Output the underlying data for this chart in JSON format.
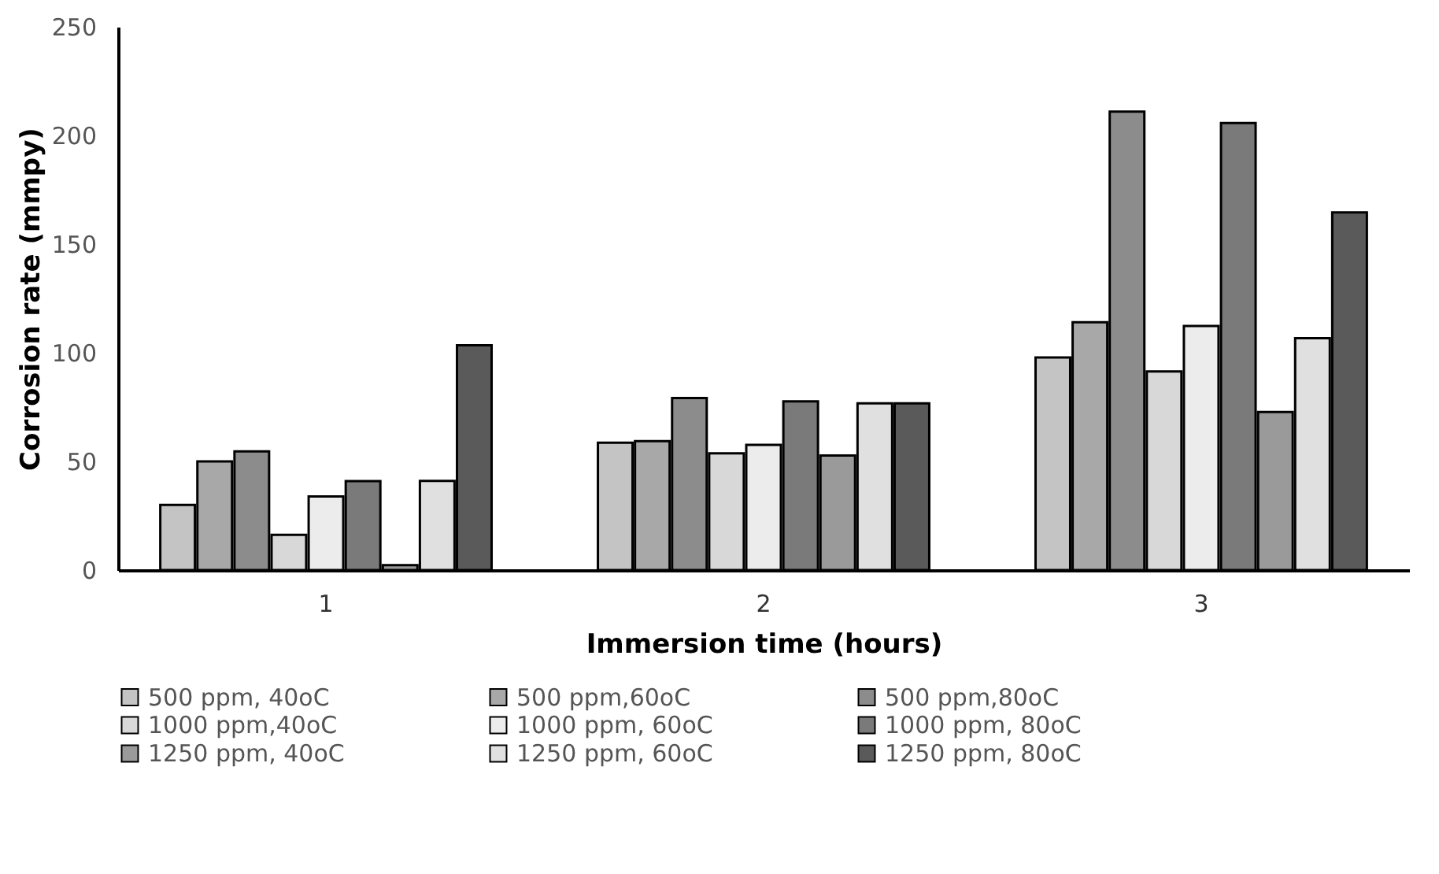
{
  "chart_data": {
    "type": "bar",
    "xlabel": "Immersion time (hours)",
    "ylabel": "Corrosion rate (mmpy)",
    "categories": [
      "1",
      "2",
      "3"
    ],
    "series": [
      {
        "name": "500 ppm, 40oC",
        "color": "#c4c4c4",
        "values": [
          30,
          58.6,
          97.8
        ]
      },
      {
        "name": "500 ppm,60oC",
        "color": "#a8a8a8",
        "values": [
          50,
          59.3,
          114
        ]
      },
      {
        "name": "500 ppm,80oC",
        "color": "#8c8c8c",
        "values": [
          54.6,
          79.2,
          211
        ]
      },
      {
        "name": "1000 ppm,40oC",
        "color": "#d8d8d8",
        "values": [
          16.2,
          53.7,
          91.4
        ]
      },
      {
        "name": "1000 ppm, 60oC",
        "color": "#ececec",
        "values": [
          33.9,
          57.6,
          112.3
        ]
      },
      {
        "name": "1000 ppm, 80oC",
        "color": "#7a7a7a",
        "values": [
          40.9,
          77.6,
          205.7
        ]
      },
      {
        "name": "1250 ppm, 40oC",
        "color": "#9a9a9a",
        "values": [
          2.3,
          52.7,
          72.7
        ]
      },
      {
        "name": "1250 ppm, 60oC",
        "color": "#e0e0e0",
        "values": [
          41,
          76.7,
          106.7
        ]
      },
      {
        "name": "1250 ppm, 80oC",
        "color": "#5a5a5a",
        "values": [
          103.4,
          76.7,
          164.6
        ]
      }
    ],
    "ylim": [
      0,
      250
    ],
    "yticks": [
      0,
      50,
      100,
      150,
      200,
      250
    ],
    "grid": false,
    "legend": "bottom"
  }
}
